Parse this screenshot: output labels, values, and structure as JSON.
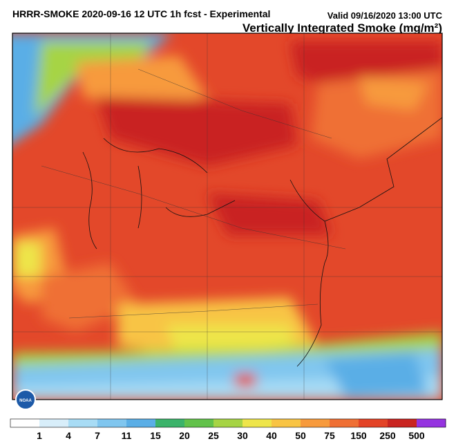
{
  "header": {
    "title": "HRRR-SMOKE 2020-09-16 12 UTC 1h fcst - Experimental",
    "valid": "Valid 09/16/2020 13:00 UTC",
    "subtitle": "Vertically Integrated Smoke (mg/m²)"
  },
  "logo": "NOAA",
  "colorbar": {
    "labels": [
      1,
      4,
      7,
      11,
      15,
      20,
      25,
      30,
      40,
      50,
      75,
      150,
      250,
      500
    ],
    "colors": [
      "#ffffff",
      "#d8eefa",
      "#a8dcf5",
      "#80c6ef",
      "#5aaee6",
      "#3bb36a",
      "#62c24a",
      "#a6d444",
      "#eee54a",
      "#f8c444",
      "#f79a3c",
      "#ef6f34",
      "#e34326",
      "#c92420",
      "#9533e0"
    ]
  }
}
